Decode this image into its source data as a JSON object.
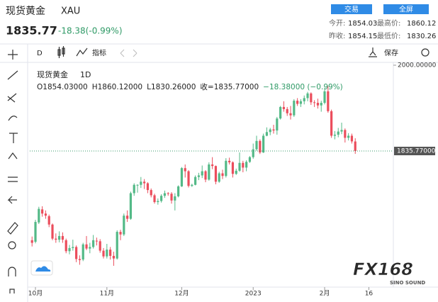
{
  "header": {
    "name": "现货黄金",
    "symbol": "XAU",
    "price": "1835.77",
    "change": "-18.38(-0.99%)",
    "buttons": [
      "交易",
      "全屏"
    ],
    "stats": [
      {
        "label": "今开:",
        "value": "1854.03"
      },
      {
        "label": "最高价:",
        "value": "1860.12"
      },
      {
        "label": "昨收:",
        "value": "1854.15"
      },
      {
        "label": "最低价:",
        "value": "1830.26"
      }
    ]
  },
  "toolbar": {
    "interval": "D",
    "indicators": "指标",
    "save": "保存"
  },
  "chart_data": {
    "type": "candlestick",
    "title": "现货黄金",
    "interval": "1D",
    "legend": [
      "O1854.03000",
      "H1860.12000",
      "L1830.26000",
      "收=1835.77000",
      "−18.38000 (−0.99%)"
    ],
    "open": [
      1665,
      1662,
      1699,
      1724,
      1716,
      1711,
      1695,
      1668,
      1666,
      1673,
      1665,
      1644,
      1650,
      1652,
      1629,
      1628,
      1657,
      1649,
      1652,
      1664,
      1663,
      1645,
      1634,
      1647,
      1635,
      1630,
      1681,
      1676,
      1712,
      1706,
      1755,
      1771,
      1771,
      1777,
      1774,
      1761,
      1751,
      1738,
      1740,
      1750,
      1755,
      1754,
      1741,
      1749,
      1768,
      1803,
      1797,
      1769,
      1771,
      1786,
      1789,
      1797,
      1781,
      1810,
      1807,
      1777,
      1793,
      1788,
      1817,
      1814,
      1792,
      1798,
      1813,
      1804,
      1815,
      1824,
      1839,
      1855,
      1833,
      1865,
      1872,
      1877,
      1875,
      1898,
      1920,
      1916,
      1908,
      1904,
      1932,
      1926,
      1931,
      1937,
      1946,
      1929,
      1928,
      1923,
      1928,
      1950,
      1912,
      1865,
      1867,
      1873,
      1876,
      1861,
      1865,
      1854.03
    ],
    "high": [
      1672,
      1704,
      1729,
      1730,
      1722,
      1714,
      1697,
      1678,
      1682,
      1680,
      1668,
      1656,
      1666,
      1655,
      1636,
      1660,
      1673,
      1660,
      1675,
      1670,
      1667,
      1650,
      1658,
      1652,
      1643,
      1684,
      1685,
      1716,
      1722,
      1758,
      1774,
      1772,
      1786,
      1782,
      1776,
      1764,
      1754,
      1745,
      1753,
      1760,
      1757,
      1757,
      1755,
      1770,
      1805,
      1810,
      1799,
      1773,
      1789,
      1794,
      1808,
      1799,
      1814,
      1824,
      1808,
      1796,
      1800,
      1822,
      1823,
      1816,
      1802,
      1833,
      1817,
      1818,
      1826,
      1850,
      1865,
      1858,
      1869,
      1881,
      1880,
      1886,
      1901,
      1922,
      1931,
      1920,
      1922,
      1935,
      1937,
      1935,
      1942,
      1949,
      1948,
      1933,
      1936,
      1932,
      1957,
      1960,
      1915,
      1874,
      1880,
      1890,
      1879,
      1870,
      1869,
      1860.12
    ],
    "low": [
      1653,
      1659,
      1696,
      1710,
      1706,
      1690,
      1665,
      1660,
      1661,
      1660,
      1640,
      1638,
      1645,
      1623,
      1618,
      1625,
      1646,
      1640,
      1649,
      1655,
      1641,
      1630,
      1630,
      1628,
      1616,
      1628,
      1665,
      1673,
      1700,
      1704,
      1750,
      1756,
      1765,
      1763,
      1755,
      1747,
      1735,
      1733,
      1737,
      1746,
      1750,
      1735,
      1722,
      1747,
      1767,
      1785,
      1766,
      1767,
      1770,
      1780,
      1784,
      1776,
      1779,
      1801,
      1772,
      1775,
      1782,
      1785,
      1810,
      1785,
      1790,
      1796,
      1795,
      1797,
      1813,
      1821,
      1836,
      1830,
      1832,
      1864,
      1866,
      1869,
      1867,
      1896,
      1911,
      1903,
      1896,
      1901,
      1922,
      1920,
      1925,
      1931,
      1924,
      1920,
      1917,
      1911,
      1925,
      1909,
      1861,
      1858,
      1862,
      1868,
      1852,
      1856,
      1850,
      1830.26
    ],
    "close": [
      1660,
      1700,
      1725,
      1716,
      1712,
      1695,
      1668,
      1666,
      1673,
      1666,
      1644,
      1650,
      1652,
      1629,
      1627,
      1657,
      1649,
      1652,
      1665,
      1663,
      1645,
      1634,
      1647,
      1635,
      1630,
      1681,
      1676,
      1712,
      1706,
      1755,
      1771,
      1771,
      1777,
      1774,
      1761,
      1751,
      1738,
      1740,
      1750,
      1755,
      1754,
      1741,
      1749,
      1768,
      1803,
      1797,
      1769,
      1771,
      1786,
      1789,
      1797,
      1781,
      1810,
      1807,
      1777,
      1793,
      1788,
      1817,
      1814,
      1792,
      1798,
      1813,
      1804,
      1815,
      1824,
      1839,
      1855,
      1833,
      1865,
      1872,
      1877,
      1875,
      1898,
      1920,
      1916,
      1908,
      1904,
      1932,
      1926,
      1931,
      1937,
      1946,
      1929,
      1928,
      1923,
      1928,
      1950,
      1912,
      1865,
      1867,
      1873,
      1876,
      1861,
      1865,
      1854.15,
      1835.77
    ],
    "up_color": "#53b987",
    "down_color": "#eb4d5c",
    "ylim": [
      1582,
      2005.4
    ],
    "yticks": [
      {
        "value": 2000,
        "label": "2000.00000"
      }
    ],
    "last_price": {
      "value": 1835.77,
      "label": "1835.77000"
    },
    "xlim": [
      -0.67,
      106.2
    ],
    "xticks": [
      {
        "value": 1,
        "label": "10月"
      },
      {
        "value": 22,
        "label": "11月"
      },
      {
        "value": 44,
        "label": "12月"
      },
      {
        "value": 65,
        "label": "2023"
      },
      {
        "value": 86,
        "label": "2月"
      },
      {
        "value": 99,
        "label": "16"
      }
    ]
  },
  "watermark": {
    "brand": "FX168",
    "sub": "SINO SOUND"
  }
}
